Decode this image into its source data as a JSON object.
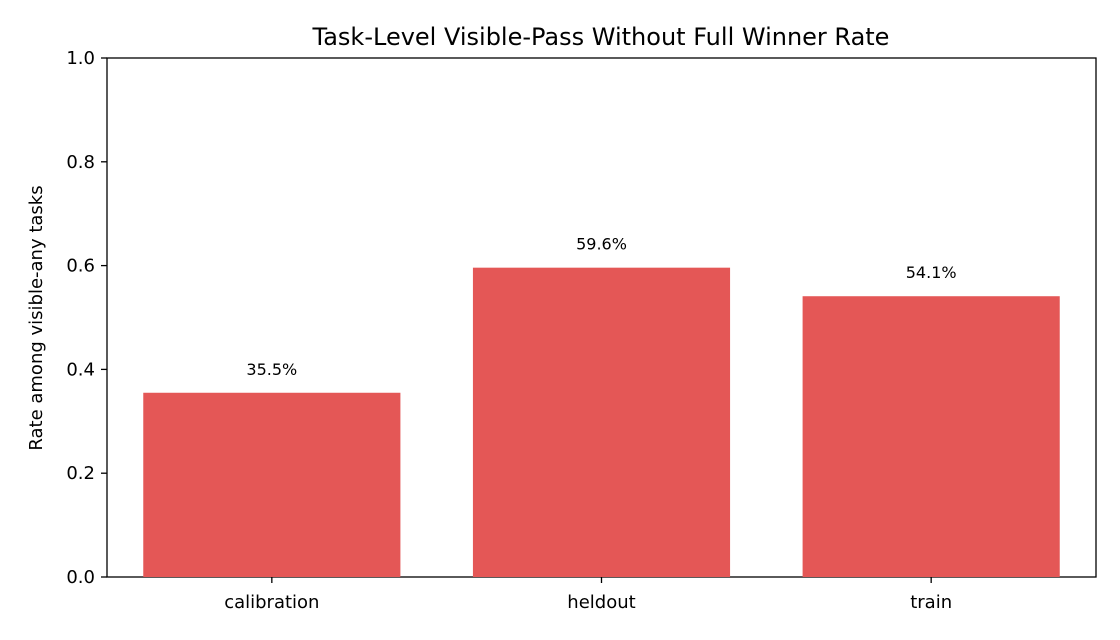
{
  "chart_data": {
    "type": "bar",
    "title": "Task-Level Visible-Pass Without Full Winner Rate",
    "xlabel": "",
    "ylabel": "Rate among visible-any tasks",
    "categories": [
      "calibration",
      "heldout",
      "train"
    ],
    "values": [
      0.355,
      0.596,
      0.541
    ],
    "data_labels": [
      "35.5%",
      "59.6%",
      "54.1%"
    ],
    "ylim": [
      0,
      1.0
    ],
    "yticks": [
      0.0,
      0.2,
      0.4,
      0.6,
      0.8,
      1.0
    ],
    "ytick_labels": [
      "0.0",
      "0.2",
      "0.4",
      "0.6",
      "0.8",
      "1.0"
    ],
    "bar_color": "#e45756",
    "grid": false,
    "legend": "none"
  }
}
